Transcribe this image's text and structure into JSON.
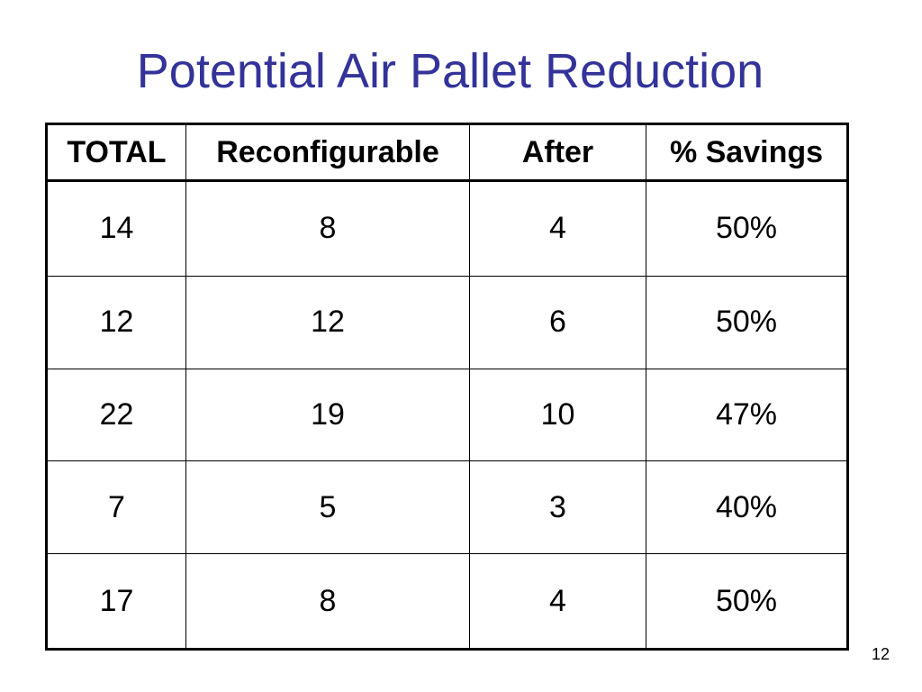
{
  "slide": {
    "title": "Potential Air Pallet Reduction",
    "page_number": "12"
  },
  "table": {
    "headers": [
      "TOTAL",
      "Reconfigurable",
      "After",
      "% Savings"
    ],
    "rows": [
      [
        "14",
        "8",
        "4",
        "50%"
      ],
      [
        "12",
        "12",
        "6",
        "50%"
      ],
      [
        "22",
        "19",
        "10",
        "47%"
      ],
      [
        "7",
        "5",
        "3",
        "40%"
      ],
      [
        "17",
        "8",
        "4",
        "50%"
      ]
    ]
  },
  "colors": {
    "title": "#33339a",
    "text": "#000000",
    "background": "#ffffff"
  }
}
